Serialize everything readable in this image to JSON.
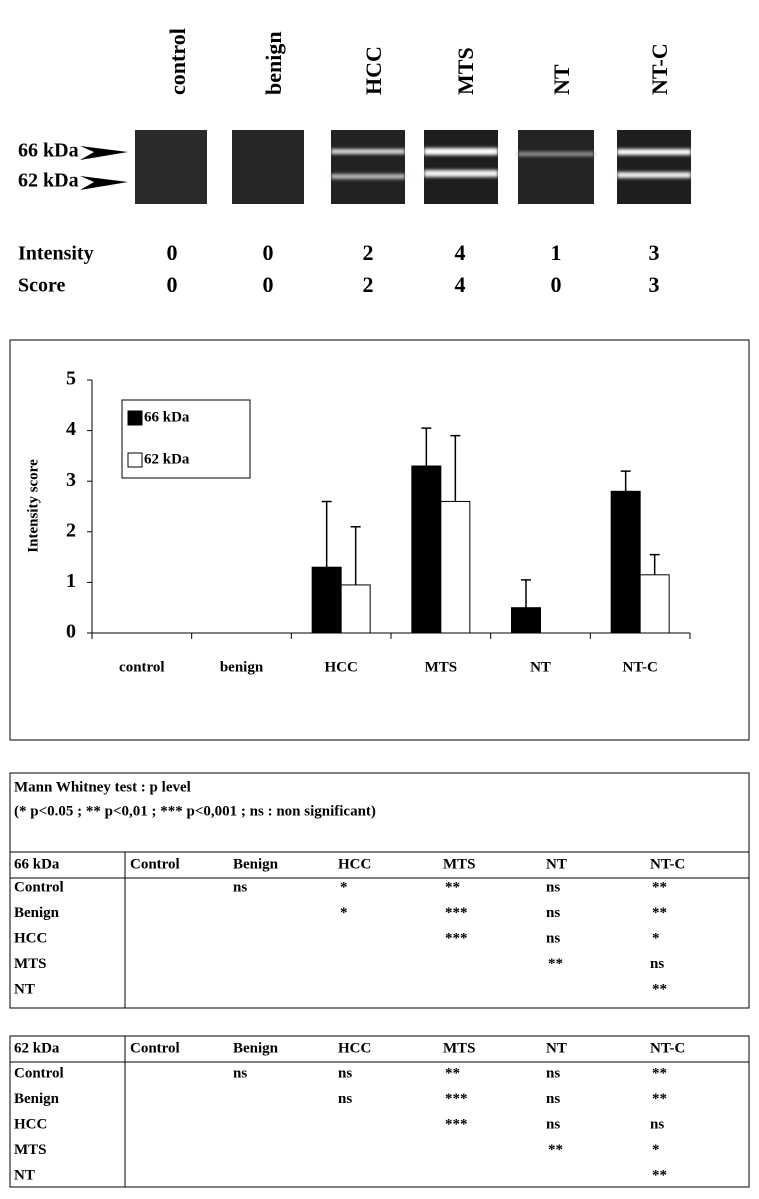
{
  "gel": {
    "lanes": [
      "control",
      "benign",
      "HCC",
      "MTS",
      "NT",
      "NT-C"
    ],
    "markers": [
      "66 kDa",
      "62 kDa"
    ],
    "rows": [
      {
        "label": "Intensity",
        "values": [
          0,
          0,
          2,
          4,
          1,
          3
        ]
      },
      {
        "label": "Score",
        "values": [
          0,
          0,
          2,
          4,
          0,
          3
        ]
      }
    ]
  },
  "chart_data": {
    "type": "bar",
    "y_label": "Intensity score",
    "categories": [
      "control",
      "benign",
      "HCC",
      "MTS",
      "NT",
      "NT-C"
    ],
    "series": [
      {
        "name": "66 kDa",
        "color": "#000000",
        "values": [
          0,
          0,
          1.3,
          3.3,
          0.5,
          2.8
        ],
        "errors": [
          null,
          null,
          1.3,
          0.75,
          0.55,
          0.4
        ]
      },
      {
        "name": "62 kDa",
        "color": "#ffffff",
        "values": [
          0,
          0,
          0.95,
          2.6,
          0,
          1.15
        ],
        "errors": [
          null,
          null,
          1.15,
          1.3,
          null,
          0.4
        ]
      }
    ],
    "ylim": [
      0,
      5
    ],
    "yticks": [
      0,
      1,
      2,
      3,
      4,
      5
    ],
    "grid": false
  },
  "tables": [
    {
      "title": "Mann Whitney test : p level",
      "note": "(* p<0.05 ; ** p<0,01 ; *** p<0,001 ; ns : non significant)",
      "header": [
        "66 kDa",
        "Control",
        "Benign",
        "HCC",
        "MTS",
        "NT",
        "NT-C"
      ],
      "rows": [
        [
          "Control",
          null,
          "ns",
          "*",
          "**",
          "ns",
          "**"
        ],
        [
          "Benign",
          null,
          null,
          "*",
          "***",
          "ns",
          "**"
        ],
        [
          "HCC",
          null,
          null,
          null,
          "***",
          "ns",
          "*"
        ],
        [
          "MTS",
          null,
          null,
          null,
          null,
          "**",
          "ns"
        ],
        [
          "NT",
          null,
          null,
          null,
          null,
          null,
          "**"
        ]
      ]
    },
    {
      "header": [
        "62 kDa",
        "Control",
        "Benign",
        "HCC",
        "MTS",
        "NT",
        "NT-C"
      ],
      "rows": [
        [
          "Control",
          null,
          "ns",
          "ns",
          "**",
          "ns",
          "**"
        ],
        [
          "Benign",
          null,
          null,
          "ns",
          "***",
          "ns",
          "**"
        ],
        [
          "HCC",
          null,
          null,
          null,
          "***",
          "ns",
          "ns"
        ],
        [
          "MTS",
          null,
          null,
          null,
          null,
          "**",
          "*"
        ],
        [
          "NT",
          null,
          null,
          null,
          null,
          null,
          "**"
        ]
      ]
    }
  ]
}
